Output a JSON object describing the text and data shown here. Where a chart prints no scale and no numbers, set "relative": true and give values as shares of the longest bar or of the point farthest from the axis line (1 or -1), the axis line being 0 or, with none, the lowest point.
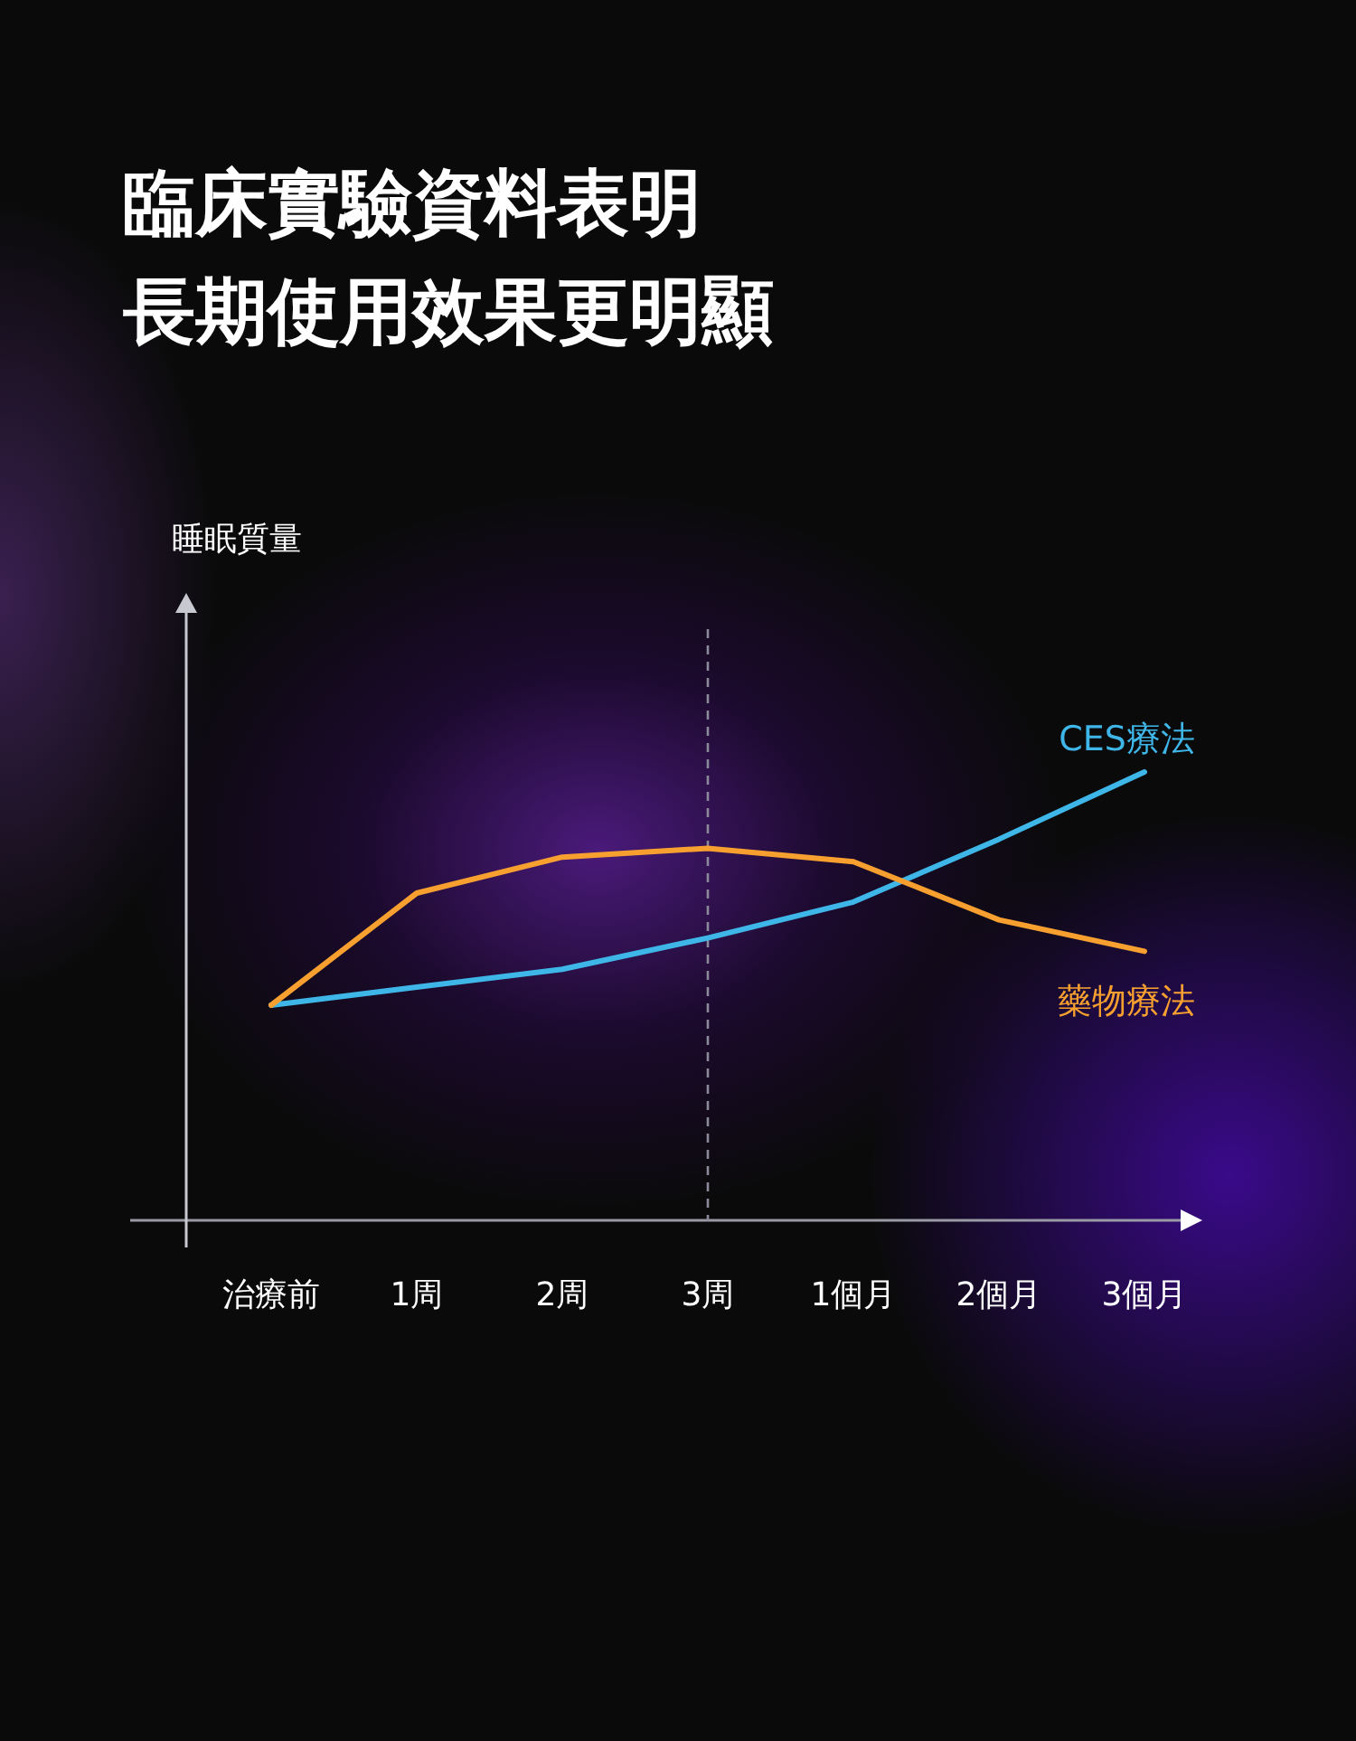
{
  "chart_data": {
    "type": "line",
    "title": "臨床實驗資料表明",
    "subtitle": "長期使用效果更明顯",
    "annotations": [
      "睡眠質量"
    ],
    "relative": true,
    "categories": [
      "治療前",
      "1周",
      "2周",
      "3周",
      "1個月",
      "2個月",
      "3個月"
    ],
    "ref_lines": [
      {
        "axis": "x",
        "value": "3周",
        "line_style": "dashed",
        "color": "#8a8a9a"
      }
    ],
    "series": [
      {
        "name": "CES療法",
        "color": "#3fb6e8",
        "values": [
          0.48,
          0.52,
          0.56,
          0.63,
          0.71,
          0.85,
          1
        ]
      },
      {
        "name": "藥物療法",
        "color": "#f7a030",
        "values": [
          0.48,
          0.73,
          0.81,
          0.83,
          0.8,
          0.67,
          0.6
        ]
      }
    ]
  }
}
